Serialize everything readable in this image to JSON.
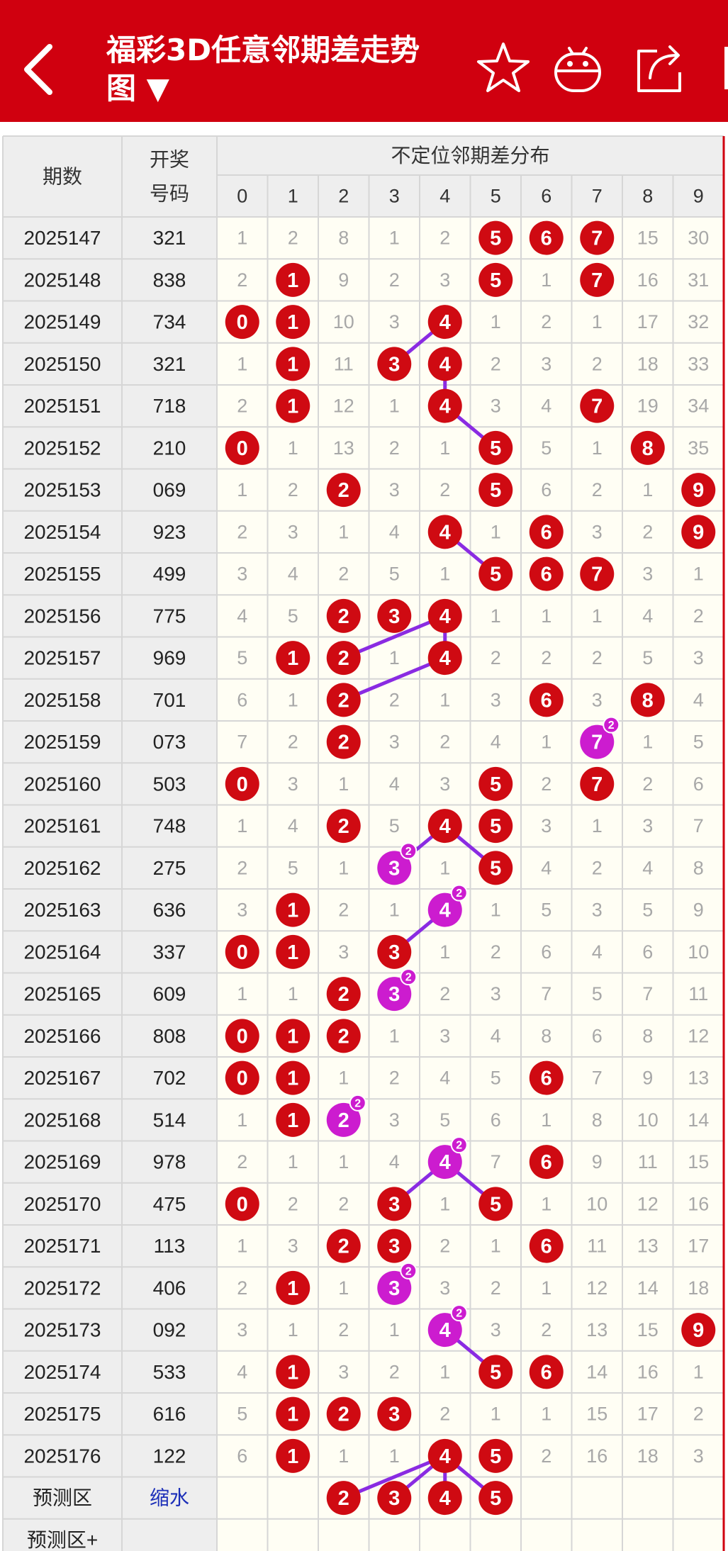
{
  "header": {
    "title_line1": "福彩3D任意邻期差走势",
    "title_line2": "图 ▼",
    "icons": [
      "back-chevron-icon",
      "star-icon",
      "android-icon",
      "share-icon"
    ],
    "bg_color": "#d0000f"
  },
  "table": {
    "col_period": "期数",
    "col_draw_line1": "开奖",
    "col_draw_line2": "号码",
    "dist_header": "不定位邻期差分布",
    "digits": [
      "0",
      "1",
      "2",
      "3",
      "4",
      "5",
      "6",
      "7",
      "8",
      "9"
    ],
    "rows": [
      {
        "p": "2025147",
        "d": "321",
        "v": [
          1,
          2,
          8,
          1,
          2,
          0,
          0,
          0,
          15,
          30
        ],
        "hit": [
          5,
          6,
          7
        ],
        "m": []
      },
      {
        "p": "2025148",
        "d": "838",
        "v": [
          2,
          0,
          9,
          2,
          3,
          0,
          1,
          0,
          16,
          31
        ],
        "hit": [
          1,
          5,
          7
        ],
        "m": []
      },
      {
        "p": "2025149",
        "d": "734",
        "v": [
          0,
          0,
          10,
          3,
          0,
          1,
          2,
          1,
          17,
          32
        ],
        "hit": [
          0,
          1,
          4
        ],
        "m": []
      },
      {
        "p": "2025150",
        "d": "321",
        "v": [
          1,
          0,
          11,
          0,
          0,
          2,
          3,
          2,
          18,
          33
        ],
        "hit": [
          1,
          3,
          4
        ],
        "m": []
      },
      {
        "p": "2025151",
        "d": "718",
        "v": [
          2,
          0,
          12,
          1,
          0,
          3,
          4,
          0,
          19,
          34
        ],
        "hit": [
          1,
          4,
          7
        ],
        "m": []
      },
      {
        "p": "2025152",
        "d": "210",
        "v": [
          0,
          1,
          13,
          2,
          1,
          0,
          5,
          1,
          0,
          35
        ],
        "hit": [
          0,
          5,
          8
        ],
        "m": []
      },
      {
        "p": "2025153",
        "d": "069",
        "v": [
          1,
          2,
          0,
          3,
          2,
          0,
          6,
          2,
          1,
          0
        ],
        "hit": [
          2,
          5,
          9
        ],
        "m": []
      },
      {
        "p": "2025154",
        "d": "923",
        "v": [
          2,
          3,
          1,
          4,
          0,
          1,
          0,
          3,
          2,
          0
        ],
        "hit": [
          4,
          6,
          9
        ],
        "m": []
      },
      {
        "p": "2025155",
        "d": "499",
        "v": [
          3,
          4,
          2,
          5,
          1,
          0,
          0,
          0,
          3,
          1
        ],
        "hit": [
          5,
          6,
          7
        ],
        "m": []
      },
      {
        "p": "2025156",
        "d": "775",
        "v": [
          4,
          5,
          0,
          0,
          0,
          1,
          1,
          1,
          4,
          2
        ],
        "hit": [
          2,
          3,
          4
        ],
        "m": []
      },
      {
        "p": "2025157",
        "d": "969",
        "v": [
          5,
          0,
          0,
          1,
          0,
          2,
          2,
          2,
          5,
          3
        ],
        "hit": [
          1,
          2,
          4
        ],
        "m": []
      },
      {
        "p": "2025158",
        "d": "701",
        "v": [
          6,
          1,
          0,
          2,
          1,
          3,
          0,
          3,
          0,
          4
        ],
        "hit": [
          2,
          6,
          8
        ],
        "m": []
      },
      {
        "p": "2025159",
        "d": "073",
        "v": [
          7,
          2,
          0,
          3,
          2,
          4,
          1,
          0,
          1,
          5
        ],
        "hit": [
          2
        ],
        "m": [
          7
        ]
      },
      {
        "p": "2025160",
        "d": "503",
        "v": [
          0,
          3,
          1,
          4,
          3,
          0,
          2,
          0,
          2,
          6
        ],
        "hit": [
          0,
          5,
          7
        ],
        "m": []
      },
      {
        "p": "2025161",
        "d": "748",
        "v": [
          1,
          4,
          0,
          5,
          0,
          0,
          3,
          1,
          3,
          7
        ],
        "hit": [
          2,
          4,
          5
        ],
        "m": []
      },
      {
        "p": "2025162",
        "d": "275",
        "v": [
          2,
          5,
          1,
          0,
          1,
          0,
          4,
          2,
          4,
          8
        ],
        "hit": [
          5
        ],
        "m": [
          3
        ]
      },
      {
        "p": "2025163",
        "d": "636",
        "v": [
          3,
          0,
          2,
          1,
          0,
          1,
          5,
          3,
          5,
          9
        ],
        "hit": [
          1
        ],
        "m": [
          4
        ]
      },
      {
        "p": "2025164",
        "d": "337",
        "v": [
          0,
          0,
          3,
          0,
          1,
          2,
          6,
          4,
          6,
          10
        ],
        "hit": [
          0,
          1,
          3
        ],
        "m": []
      },
      {
        "p": "2025165",
        "d": "609",
        "v": [
          1,
          1,
          0,
          0,
          2,
          3,
          7,
          5,
          7,
          11
        ],
        "hit": [
          2
        ],
        "m": [
          3
        ]
      },
      {
        "p": "2025166",
        "d": "808",
        "v": [
          0,
          0,
          0,
          1,
          3,
          4,
          8,
          6,
          8,
          12
        ],
        "hit": [
          0,
          1,
          2
        ],
        "m": []
      },
      {
        "p": "2025167",
        "d": "702",
        "v": [
          0,
          0,
          1,
          2,
          4,
          5,
          0,
          7,
          9,
          13
        ],
        "hit": [
          0,
          1,
          6
        ],
        "m": []
      },
      {
        "p": "2025168",
        "d": "514",
        "v": [
          1,
          0,
          0,
          3,
          5,
          6,
          1,
          8,
          10,
          14
        ],
        "hit": [
          1
        ],
        "m": [
          2
        ]
      },
      {
        "p": "2025169",
        "d": "978",
        "v": [
          2,
          1,
          1,
          4,
          0,
          7,
          0,
          9,
          11,
          15
        ],
        "hit": [
          6
        ],
        "m": [
          4
        ]
      },
      {
        "p": "2025170",
        "d": "475",
        "v": [
          0,
          2,
          2,
          0,
          1,
          0,
          1,
          10,
          12,
          16
        ],
        "hit": [
          0,
          3,
          5
        ],
        "m": []
      },
      {
        "p": "2025171",
        "d": "113",
        "v": [
          1,
          3,
          0,
          0,
          2,
          1,
          0,
          11,
          13,
          17
        ],
        "hit": [
          2,
          3,
          6
        ],
        "m": []
      },
      {
        "p": "2025172",
        "d": "406",
        "v": [
          2,
          0,
          1,
          0,
          3,
          2,
          1,
          12,
          14,
          18
        ],
        "hit": [
          1
        ],
        "m": [
          3
        ]
      },
      {
        "p": "2025173",
        "d": "092",
        "v": [
          3,
          1,
          2,
          1,
          0,
          3,
          2,
          13,
          15,
          0
        ],
        "hit": [
          9
        ],
        "m": [
          4
        ]
      },
      {
        "p": "2025174",
        "d": "533",
        "v": [
          4,
          0,
          3,
          2,
          1,
          0,
          0,
          14,
          16,
          1
        ],
        "hit": [
          1,
          5,
          6
        ],
        "m": []
      },
      {
        "p": "2025175",
        "d": "616",
        "v": [
          5,
          0,
          0,
          0,
          2,
          1,
          1,
          15,
          17,
          2
        ],
        "hit": [
          1,
          2,
          3
        ],
        "m": []
      },
      {
        "p": "2025176",
        "d": "122",
        "v": [
          6,
          0,
          1,
          1,
          0,
          0,
          2,
          16,
          18,
          3
        ],
        "hit": [
          1,
          4,
          5
        ],
        "m": []
      }
    ],
    "predict_label": "预测区",
    "predict_action": "缩水",
    "predict_hits": [
      "2",
      "3",
      "4",
      "5"
    ],
    "predict_plus_label": "预测区+",
    "badge_text": "2",
    "links": [
      [
        2,
        4,
        3,
        3
      ],
      [
        3,
        4,
        4,
        4
      ],
      [
        4,
        4,
        5,
        5
      ],
      [
        7,
        4,
        8,
        5
      ],
      [
        9,
        4,
        10,
        2
      ],
      [
        9,
        4,
        10,
        4
      ],
      [
        10,
        4,
        11,
        2
      ],
      [
        14,
        4,
        15,
        3
      ],
      [
        14,
        4,
        15,
        5
      ],
      [
        16,
        4,
        17,
        3
      ],
      [
        22,
        4,
        23,
        3
      ],
      [
        22,
        4,
        23,
        5
      ],
      [
        26,
        4,
        27,
        5
      ],
      [
        29,
        4,
        30,
        2
      ],
      [
        29,
        4,
        30,
        3
      ],
      [
        29,
        4,
        30,
        4
      ],
      [
        29,
        4,
        30,
        5
      ]
    ]
  },
  "colors": {
    "header_red": "#d0000f",
    "ball_red": "#cf0a12",
    "ball_magenta": "#cc1ccf",
    "link_purple": "#8a2be2",
    "grid": "#d6d6d6",
    "left_cell_bg": "#eeeeee",
    "cell_bg": "#fffef4",
    "miss_text": "#a8a8a8",
    "action_blue": "#1c2fb8"
  }
}
